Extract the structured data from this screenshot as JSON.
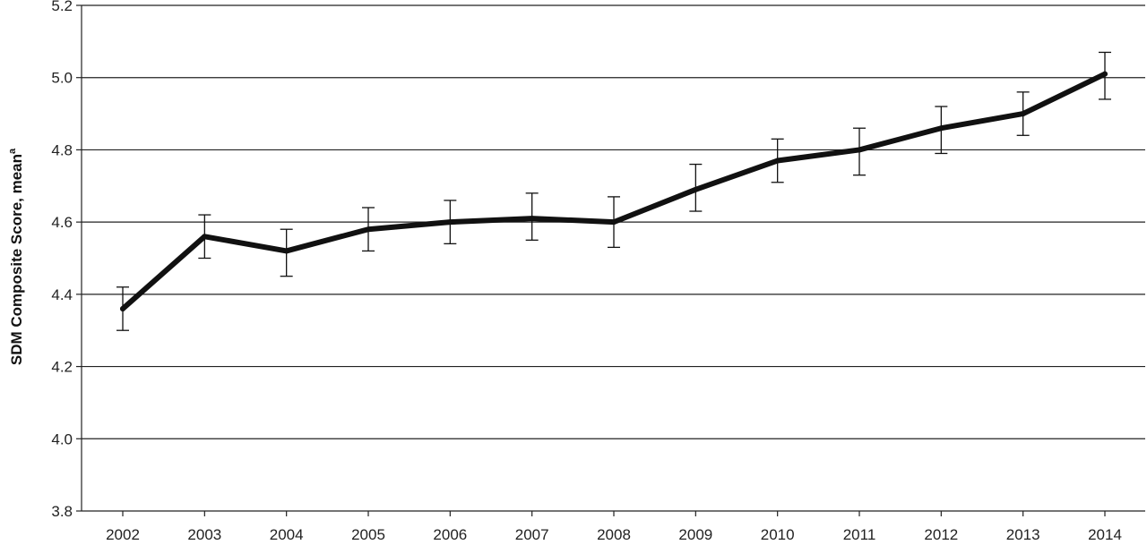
{
  "chart_data": {
    "type": "line",
    "title": "",
    "xlabel": "",
    "ylabel": "SDM Composite Score, mean",
    "ylabel_superscript": "a",
    "x": [
      "2002",
      "2003",
      "2004",
      "2005",
      "2006",
      "2007",
      "2008",
      "2009",
      "2010",
      "2011",
      "2012",
      "2013",
      "2014"
    ],
    "series": [
      {
        "values": [
          4.36,
          4.56,
          4.52,
          4.58,
          4.6,
          4.61,
          4.6,
          4.69,
          4.77,
          4.8,
          4.86,
          4.9,
          5.01
        ],
        "error_low": [
          4.3,
          4.5,
          4.45,
          4.52,
          4.54,
          4.55,
          4.53,
          4.63,
          4.71,
          4.73,
          4.79,
          4.84,
          4.94
        ],
        "error_high": [
          4.42,
          4.62,
          4.58,
          4.64,
          4.66,
          4.68,
          4.67,
          4.76,
          4.83,
          4.86,
          4.92,
          4.96,
          5.07
        ],
        "color": "#111111"
      }
    ],
    "ylim": [
      3.8,
      5.2
    ],
    "yticks": [
      "3.8",
      "4.0",
      "4.2",
      "4.4",
      "4.6",
      "4.8",
      "5.0",
      "5.2"
    ],
    "grid": "horizontal",
    "legend": "none"
  }
}
